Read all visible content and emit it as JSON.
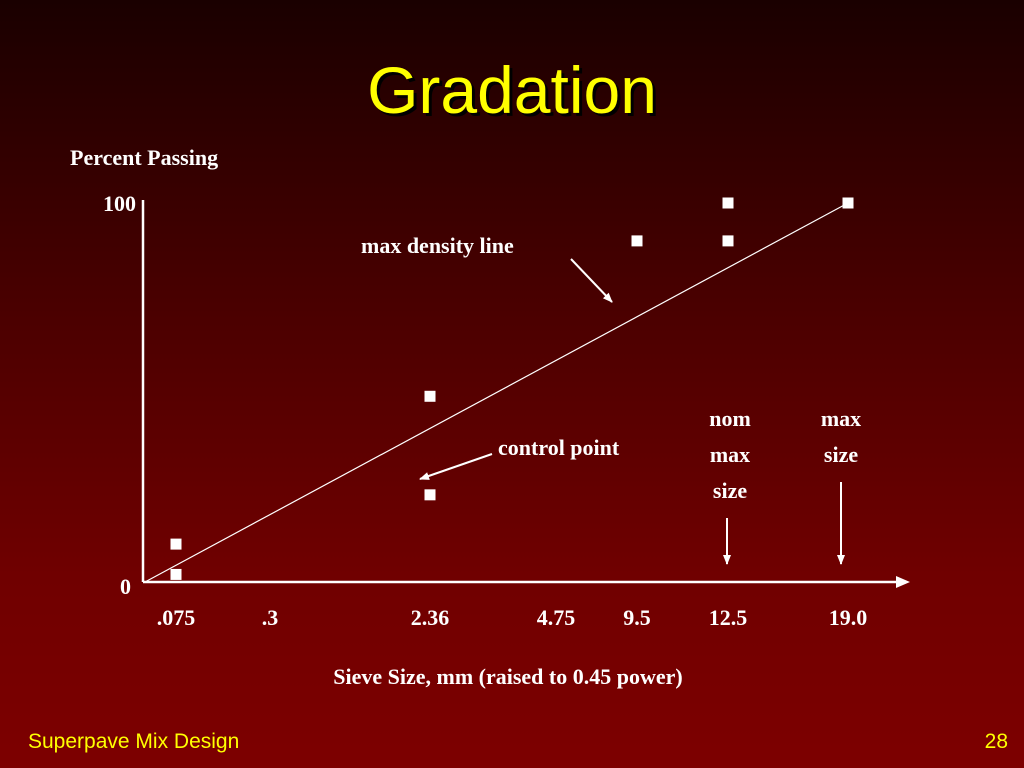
{
  "slide": {
    "title": "Gradation",
    "footer_left": "Superpave Mix Design",
    "page_number": "28"
  },
  "colors": {
    "background": "#7d0000",
    "title": "#ffff00",
    "text": "#ffffff",
    "footer": "#ffff00"
  },
  "chart_data": {
    "type": "scatter",
    "title": "",
    "ylabel": "Percent Passing",
    "xlabel": "Sieve Size, mm (raised to 0.45 power)",
    "x_scale": "power 0.45",
    "ylim": [
      0,
      100
    ],
    "y_ticks": [
      "0",
      "100"
    ],
    "x_ticks": [
      {
        "label": ".075",
        "value": 0.075
      },
      {
        "label": ".3",
        "value": 0.3
      },
      {
        "label": "2.36",
        "value": 2.36
      },
      {
        "label": "4.75",
        "value": 4.75
      },
      {
        "label": "9.5",
        "value": 9.5
      },
      {
        "label": "12.5",
        "value": 12.5
      },
      {
        "label": "19.0",
        "value": 19.0
      }
    ],
    "max_density_line": {
      "from": [
        0,
        0
      ],
      "to": [
        19.0,
        100
      ]
    },
    "control_points": [
      {
        "x": 0.075,
        "y": 2
      },
      {
        "x": 0.075,
        "y": 10
      },
      {
        "x": 2.36,
        "y": 23
      },
      {
        "x": 2.36,
        "y": 49
      },
      {
        "x": 9.5,
        "y": 90
      },
      {
        "x": 12.5,
        "y": 90
      },
      {
        "x": 12.5,
        "y": 100
      },
      {
        "x": 19.0,
        "y": 100
      }
    ],
    "annotations": {
      "max_density_line": "max density line",
      "control_point": "control point",
      "nom_max_size": [
        "nom",
        "max",
        "size"
      ],
      "max_size": [
        "max",
        "size"
      ]
    },
    "grid": false,
    "legend": "none"
  }
}
